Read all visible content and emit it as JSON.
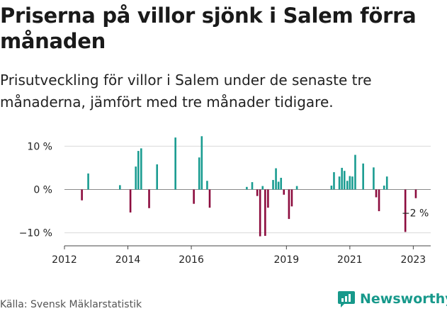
{
  "title": "Priserna på villor sjönk i Salem förra månaden",
  "subtitle": "Prisutveckling för villor i Salem under de senaste tre månaderna, jämfört med tre månader tidigare.",
  "source": "Källa: Svensk Mäklarstatistik",
  "brand": "Newsworthy",
  "colors": {
    "positive": "#1a9c91",
    "negative": "#8c0c3e",
    "brand": "#17998b",
    "grid": "#d9d9d9"
  },
  "chart_data": {
    "type": "bar",
    "ylim": [
      -13,
      13
    ],
    "yticks": [
      10,
      0,
      -10
    ],
    "ytick_labels": [
      "10 %",
      "0 %",
      "−10 %"
    ],
    "xlim": [
      2012.0,
      2023.55
    ],
    "xticks": [
      2012,
      2014,
      2016,
      2019,
      2021,
      2023
    ],
    "xtick_labels": [
      "2012",
      "2014",
      "2016",
      "2019",
      "2021",
      "2023"
    ],
    "annotation": {
      "label": "−2 %",
      "x": 2023.08,
      "y": -2
    },
    "values": [
      {
        "x": 2012.55,
        "y": -2.5
      },
      {
        "x": 2012.75,
        "y": 3.7
      },
      {
        "x": 2013.75,
        "y": 1.0
      },
      {
        "x": 2014.08,
        "y": -5.3
      },
      {
        "x": 2014.25,
        "y": 5.3
      },
      {
        "x": 2014.33,
        "y": 8.9
      },
      {
        "x": 2014.42,
        "y": 9.5
      },
      {
        "x": 2014.67,
        "y": -4.3
      },
      {
        "x": 2014.92,
        "y": 5.8
      },
      {
        "x": 2015.5,
        "y": 12.0
      },
      {
        "x": 2016.08,
        "y": -3.3
      },
      {
        "x": 2016.25,
        "y": 7.4
      },
      {
        "x": 2016.33,
        "y": 12.3
      },
      {
        "x": 2016.5,
        "y": 2.0
      },
      {
        "x": 2016.58,
        "y": -4.2
      },
      {
        "x": 2017.75,
        "y": 0.6
      },
      {
        "x": 2017.92,
        "y": 1.7
      },
      {
        "x": 2018.08,
        "y": -1.5
      },
      {
        "x": 2018.17,
        "y": -10.8
      },
      {
        "x": 2018.25,
        "y": 0.8
      },
      {
        "x": 2018.33,
        "y": -10.7
      },
      {
        "x": 2018.42,
        "y": -4.2
      },
      {
        "x": 2018.58,
        "y": 2.2
      },
      {
        "x": 2018.67,
        "y": 4.9
      },
      {
        "x": 2018.75,
        "y": 1.8
      },
      {
        "x": 2018.83,
        "y": 2.7
      },
      {
        "x": 2018.92,
        "y": -1.2
      },
      {
        "x": 2019.08,
        "y": -6.8
      },
      {
        "x": 2019.17,
        "y": -3.9
      },
      {
        "x": 2019.33,
        "y": 0.8
      },
      {
        "x": 2020.42,
        "y": 0.9
      },
      {
        "x": 2020.5,
        "y": 4.0
      },
      {
        "x": 2020.67,
        "y": 3.0
      },
      {
        "x": 2020.75,
        "y": 5.0
      },
      {
        "x": 2020.83,
        "y": 4.3
      },
      {
        "x": 2020.92,
        "y": 2.0
      },
      {
        "x": 2021.0,
        "y": 3.1
      },
      {
        "x": 2021.08,
        "y": 3.0
      },
      {
        "x": 2021.17,
        "y": 8.0
      },
      {
        "x": 2021.42,
        "y": 6.0
      },
      {
        "x": 2021.75,
        "y": 5.1
      },
      {
        "x": 2021.83,
        "y": -1.8
      },
      {
        "x": 2021.92,
        "y": -5.0
      },
      {
        "x": 2022.08,
        "y": 0.9
      },
      {
        "x": 2022.17,
        "y": 3.0
      },
      {
        "x": 2022.75,
        "y": -9.8
      },
      {
        "x": 2023.08,
        "y": -2.0
      }
    ]
  }
}
